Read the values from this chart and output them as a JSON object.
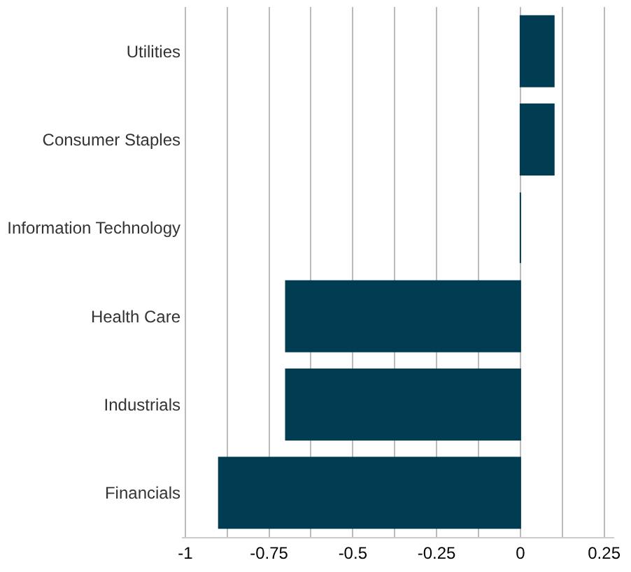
{
  "chart_data": {
    "type": "bar",
    "orientation": "horizontal",
    "categories": [
      "Utilities",
      "Consumer Staples",
      "Information Technology",
      "Health Care",
      "Industrials",
      "Financials"
    ],
    "values": [
      0.1,
      0.1,
      0,
      -0.7,
      -0.7,
      -0.9
    ],
    "color": "#003d52",
    "xlim": [
      -1.01,
      0.28
    ],
    "xticks": [
      -1,
      {
        "value": -0.875,
        "label": null
      },
      {
        "value": -0.75,
        "label": "-0.75"
      },
      {
        "value": -0.625,
        "label": null
      },
      {
        "value": -0.5,
        "label": "-0.5"
      },
      {
        "value": -0.375,
        "label": null
      },
      {
        "value": -0.25,
        "label": "-0.25"
      },
      {
        "value": -0.125,
        "label": null
      },
      0,
      {
        "value": 0.125,
        "label": null
      },
      {
        "value": 0.25,
        "label": "0.25"
      }
    ],
    "grid": "x",
    "legend": false
  }
}
